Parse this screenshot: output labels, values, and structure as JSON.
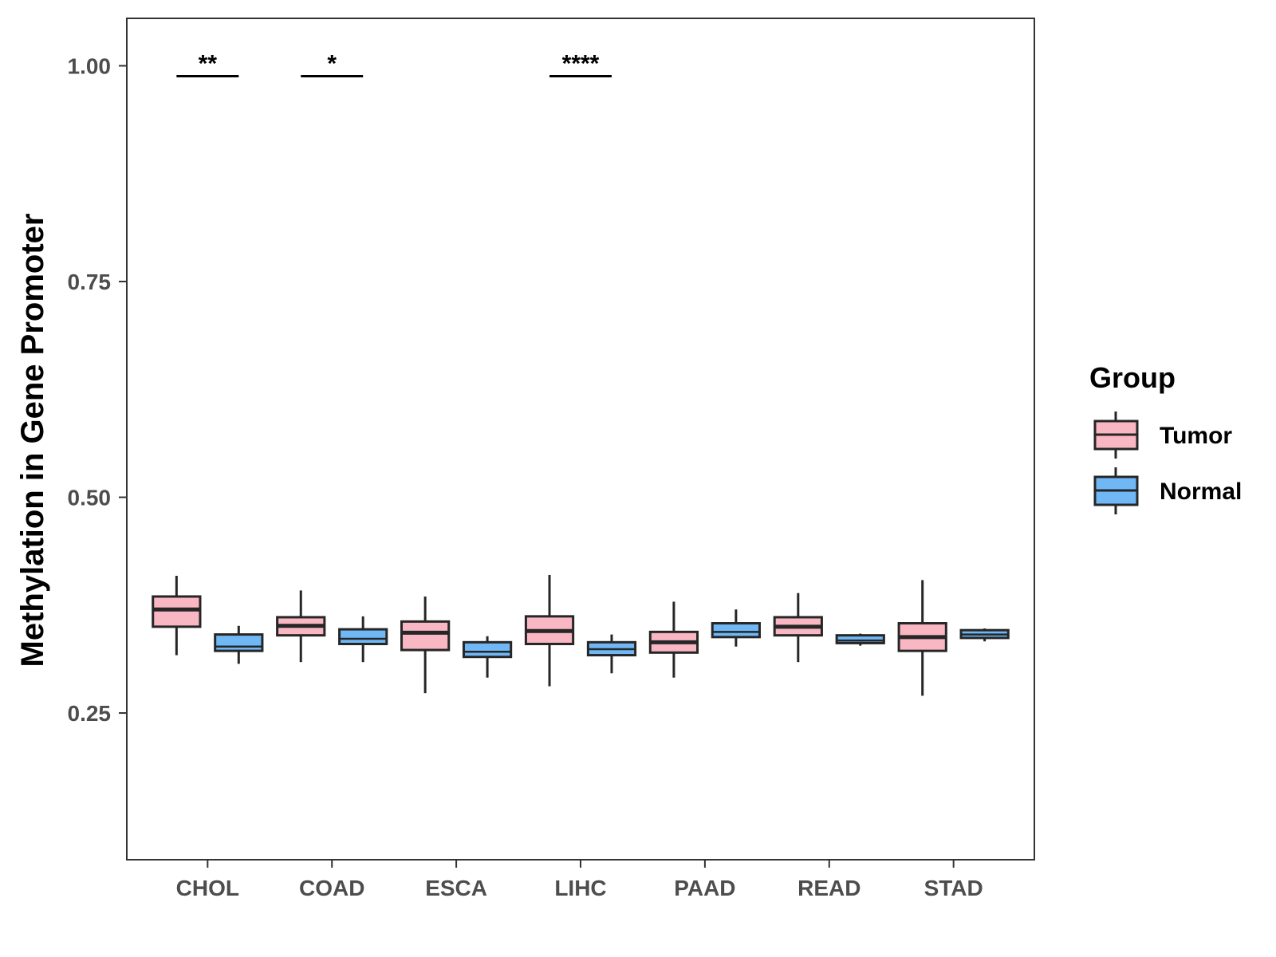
{
  "chart_data": {
    "type": "boxplot",
    "title": "",
    "xlabel": "",
    "ylabel": "Methylation in Gene Promoter",
    "ylim": [
      0.08,
      1.055
    ],
    "yticks": [
      0.25,
      0.5,
      0.75,
      1.0
    ],
    "ytick_labels": [
      "0.25",
      "0.50",
      "0.75",
      "1.00"
    ],
    "categories": [
      "CHOL",
      "COAD",
      "ESCA",
      "LIHC",
      "PAAD",
      "READ",
      "STAD"
    ],
    "legend": {
      "title": "Group",
      "position": "right",
      "entries": [
        {
          "name": "Tumor",
          "color": "#f9b6c3"
        },
        {
          "name": "Normal",
          "color": "#6fb8f5"
        }
      ]
    },
    "series": [
      {
        "name": "Tumor",
        "color": "#f9b6c3",
        "boxes": [
          {
            "min": 0.317,
            "q1": 0.35,
            "median": 0.37,
            "q3": 0.385,
            "max": 0.409
          },
          {
            "min": 0.309,
            "q1": 0.34,
            "median": 0.351,
            "q3": 0.361,
            "max": 0.392
          },
          {
            "min": 0.273,
            "q1": 0.323,
            "median": 0.343,
            "q3": 0.356,
            "max": 0.385
          },
          {
            "min": 0.281,
            "q1": 0.33,
            "median": 0.345,
            "q3": 0.362,
            "max": 0.41
          },
          {
            "min": 0.291,
            "q1": 0.32,
            "median": 0.332,
            "q3": 0.344,
            "max": 0.379
          },
          {
            "min": 0.309,
            "q1": 0.34,
            "median": 0.35,
            "q3": 0.361,
            "max": 0.389
          },
          {
            "min": 0.27,
            "q1": 0.322,
            "median": 0.338,
            "q3": 0.354,
            "max": 0.404
          }
        ]
      },
      {
        "name": "Normal",
        "color": "#6fb8f5",
        "boxes": [
          {
            "min": 0.307,
            "q1": 0.322,
            "median": 0.327,
            "q3": 0.341,
            "max": 0.351
          },
          {
            "min": 0.309,
            "q1": 0.33,
            "median": 0.336,
            "q3": 0.347,
            "max": 0.362
          },
          {
            "min": 0.291,
            "q1": 0.315,
            "median": 0.321,
            "q3": 0.332,
            "max": 0.339
          },
          {
            "min": 0.296,
            "q1": 0.317,
            "median": 0.324,
            "q3": 0.332,
            "max": 0.341
          },
          {
            "min": 0.327,
            "q1": 0.338,
            "median": 0.344,
            "q3": 0.354,
            "max": 0.37
          },
          {
            "min": 0.328,
            "q1": 0.331,
            "median": 0.334,
            "q3": 0.34,
            "max": 0.342
          },
          {
            "min": 0.333,
            "q1": 0.337,
            "median": 0.341,
            "q3": 0.346,
            "max": 0.348
          }
        ]
      }
    ],
    "annotations": [
      {
        "category": "CHOL",
        "label": "**",
        "y": 0.988
      },
      {
        "category": "COAD",
        "label": "*",
        "y": 0.988
      },
      {
        "category": "LIHC",
        "label": "****",
        "y": 0.988
      }
    ]
  }
}
